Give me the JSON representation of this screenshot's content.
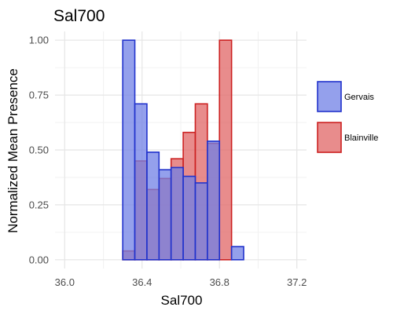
{
  "chart_data": {
    "type": "bar",
    "title": "Sal700",
    "xlabel": "Sal700",
    "ylabel": "Normalized Mean Presence",
    "xlim": [
      35.95,
      37.25
    ],
    "ylim": [
      -0.04,
      1.04
    ],
    "x_ticks": [
      36.0,
      36.4,
      36.8,
      37.2
    ],
    "x_tick_labels": [
      "36.0",
      "36.4",
      "36.8",
      "37.2"
    ],
    "y_ticks": [
      0,
      0.25,
      0.5,
      0.75,
      1.0
    ],
    "y_tick_labels": [
      "0.00",
      "0.25",
      "0.50",
      "0.75",
      "1.00"
    ],
    "grid": true,
    "overlapping": true,
    "bin_width": 0.0625,
    "bin_starts": [
      36.3,
      36.3625,
      36.425,
      36.4875,
      36.55,
      36.6125,
      36.675,
      36.7375,
      36.8,
      36.8625
    ],
    "legend_position": "right",
    "series": [
      {
        "name": "Blainville",
        "fill": "#e06666",
        "stroke": "#cc2222",
        "values": [
          0.04,
          0.45,
          0.32,
          0.37,
          0.46,
          0.58,
          0.71,
          0.53,
          1.0,
          0.0
        ]
      },
      {
        "name": "Gervais",
        "fill": "#7080e6",
        "stroke": "#2233cc",
        "values": [
          1.0,
          0.71,
          0.49,
          0.41,
          0.42,
          0.38,
          0.35,
          0.54,
          0.0,
          0.06
        ]
      }
    ],
    "legend": [
      "Gervais",
      "Blainville"
    ]
  }
}
